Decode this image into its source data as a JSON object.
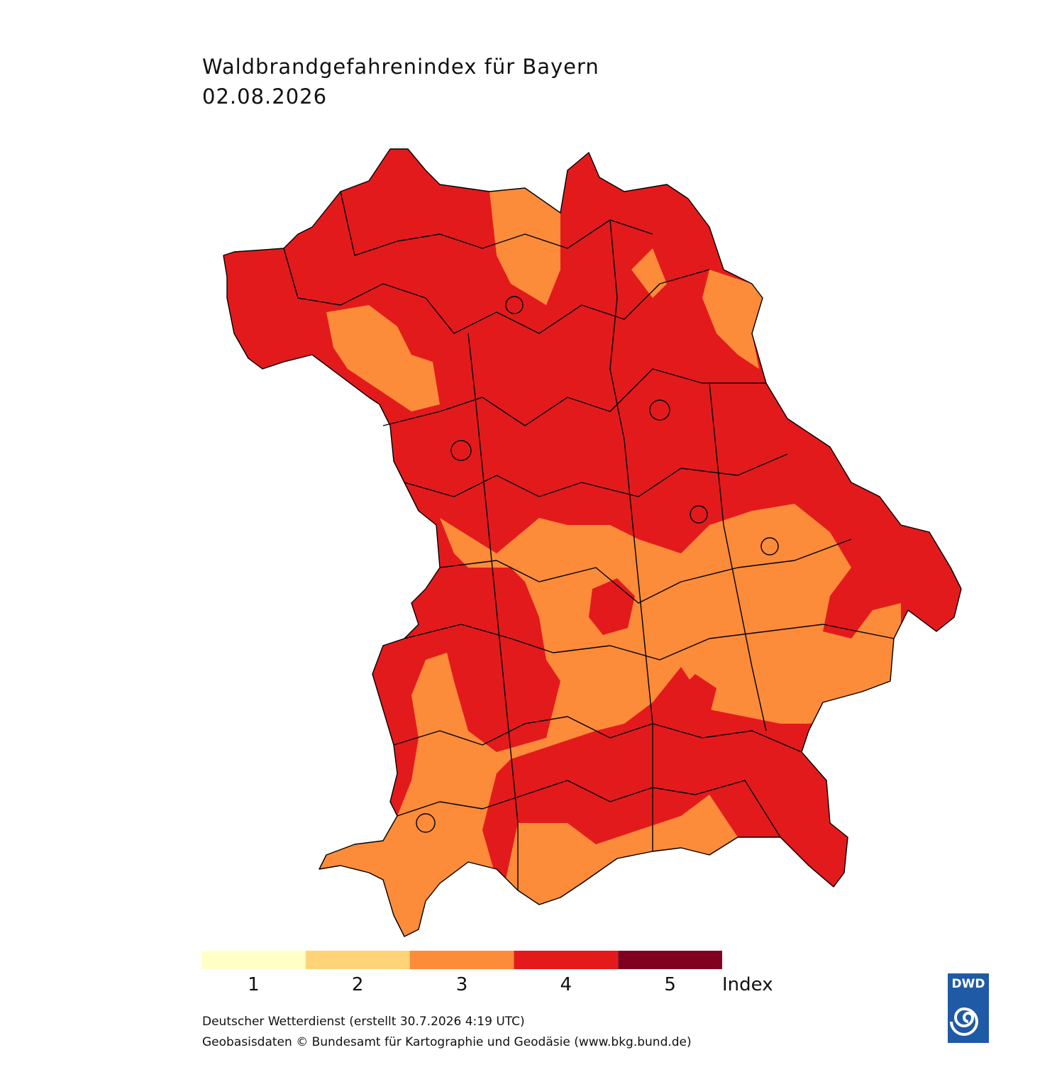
{
  "header": {
    "title": "Waldbrandgefahrenindex für Bayern",
    "date": "02.08.2026"
  },
  "legend": {
    "items": [
      {
        "label": "1",
        "color": "#ffffc8"
      },
      {
        "label": "2",
        "color": "#ffd479"
      },
      {
        "label": "3",
        "color": "#fc8b3a"
      },
      {
        "label": "4",
        "color": "#e31a1c"
      },
      {
        "label": "5",
        "color": "#800020"
      }
    ],
    "unit": "Index"
  },
  "footer": {
    "lines": [
      "Deutscher Wetterdienst (erstellt 30.7.2026 4:19 UTC)",
      "Geobasisdaten © Bundesamt für Kartographie und Geodäsie (www.bkg.bund.de)"
    ]
  },
  "logo": {
    "text": "DWD"
  }
}
